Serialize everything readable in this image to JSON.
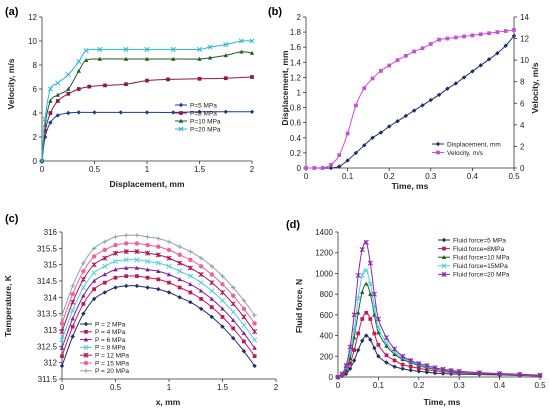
{
  "chart_data": [
    {
      "panel": "(a)",
      "type": "line",
      "xlabel": "Displacement, mm",
      "ylabel": "Velocity, m/s",
      "xlim": [
        0,
        2
      ],
      "ylim": [
        0,
        12
      ],
      "xticks": [
        "0",
        "0.5",
        "1",
        "1.5",
        "2"
      ],
      "yticks": [
        "0",
        "2",
        "4",
        "6",
        "8",
        "10",
        "12"
      ],
      "grid": false,
      "legend_position": "bottom-right",
      "series": [
        {
          "name": "P=5 MPa",
          "color": "#1f3a93",
          "marker": "diamond",
          "x": [
            0,
            0.03,
            0.08,
            0.15,
            0.25,
            0.35,
            0.5,
            0.75,
            1.0,
            1.25,
            1.5,
            1.75,
            2.0
          ],
          "y": [
            0,
            2.0,
            3.2,
            3.8,
            4.0,
            4.05,
            4.05,
            4.05,
            4.05,
            4.05,
            4.1,
            4.1,
            4.1
          ]
        },
        {
          "name": "P=8 MPa",
          "color": "#8b1a4a",
          "marker": "square",
          "x": [
            0,
            0.03,
            0.08,
            0.15,
            0.25,
            0.35,
            0.45,
            0.6,
            0.8,
            1.0,
            1.2,
            1.5,
            1.75,
            2.0
          ],
          "y": [
            0,
            2.5,
            4.0,
            5.0,
            5.6,
            6.0,
            6.2,
            6.3,
            6.4,
            6.7,
            6.8,
            6.85,
            6.9,
            7.0
          ]
        },
        {
          "name": "P=10 MPa",
          "color": "#1b5e20",
          "marker": "triangle",
          "x": [
            0,
            0.03,
            0.08,
            0.15,
            0.25,
            0.35,
            0.42,
            0.55,
            0.8,
            1.0,
            1.25,
            1.5,
            1.6,
            1.75,
            1.9,
            2.0
          ],
          "y": [
            0,
            3.0,
            5.0,
            5.5,
            6.0,
            7.5,
            8.4,
            8.5,
            8.5,
            8.5,
            8.5,
            8.5,
            8.6,
            8.8,
            9.1,
            9.0
          ]
        },
        {
          "name": "P=20 MPa",
          "color": "#29b6d6",
          "marker": "x",
          "x": [
            0,
            0.03,
            0.08,
            0.15,
            0.25,
            0.35,
            0.42,
            0.55,
            0.8,
            1.0,
            1.25,
            1.5,
            1.6,
            1.75,
            1.9,
            2.0
          ],
          "y": [
            0,
            3.5,
            6.0,
            6.5,
            7.2,
            8.3,
            9.2,
            9.3,
            9.3,
            9.3,
            9.3,
            9.3,
            9.5,
            9.7,
            10.0,
            10.0
          ]
        }
      ]
    },
    {
      "panel": "(b)",
      "type": "line",
      "xlabel": "Time, ms",
      "ylabel": "Displacement, mm",
      "y2label": "Velocity, m/s",
      "xlim": [
        0,
        0.5
      ],
      "ylim": [
        0,
        2
      ],
      "y2lim": [
        0,
        14
      ],
      "xticks": [
        "0",
        "0.1",
        "0.2",
        "0.3",
        "0.4",
        "0.5"
      ],
      "yticks": [
        "0",
        "0.2",
        "0.4",
        "0.6",
        "0.8",
        "1",
        "1.2",
        "1.4",
        "1.6",
        "1.8",
        "2"
      ],
      "y2ticks": [
        "0",
        "2",
        "4",
        "6",
        "8",
        "10",
        "12",
        "14"
      ],
      "grid": false,
      "legend_position": "bottom-right",
      "series": [
        {
          "name": "Displacement, mm",
          "color": "#1f2f6b",
          "marker": "diamond",
          "axis": "left",
          "x": [
            0,
            0.02,
            0.04,
            0.06,
            0.08,
            0.1,
            0.12,
            0.14,
            0.16,
            0.18,
            0.2,
            0.22,
            0.24,
            0.26,
            0.28,
            0.3,
            0.32,
            0.34,
            0.36,
            0.38,
            0.4,
            0.42,
            0.44,
            0.46,
            0.48,
            0.5
          ],
          "y": [
            0,
            0,
            0,
            0,
            0.02,
            0.1,
            0.2,
            0.3,
            0.4,
            0.47,
            0.55,
            0.62,
            0.69,
            0.76,
            0.83,
            0.9,
            0.97,
            1.05,
            1.12,
            1.2,
            1.28,
            1.36,
            1.44,
            1.52,
            1.62,
            1.75
          ]
        },
        {
          "name": "Velocity, m/s",
          "color": "#c74fd6",
          "marker": "square",
          "axis": "right",
          "x": [
            0,
            0.02,
            0.04,
            0.06,
            0.08,
            0.1,
            0.12,
            0.14,
            0.16,
            0.18,
            0.2,
            0.22,
            0.24,
            0.26,
            0.28,
            0.3,
            0.32,
            0.34,
            0.36,
            0.38,
            0.4,
            0.42,
            0.44,
            0.46,
            0.48,
            0.5
          ],
          "y": [
            0,
            0,
            0,
            0.3,
            1.2,
            3.2,
            5.8,
            7.4,
            8.3,
            9.0,
            9.5,
            10.0,
            10.4,
            10.8,
            11.1,
            11.5,
            11.9,
            12.0,
            12.1,
            12.2,
            12.3,
            12.4,
            12.5,
            12.6,
            12.7,
            12.8
          ]
        }
      ]
    },
    {
      "panel": "(c)",
      "type": "line",
      "xlabel": "x, mm",
      "ylabel": "Temperature, K",
      "xlim": [
        0,
        2
      ],
      "ylim": [
        311.5,
        316
      ],
      "xticks": [
        "0",
        "0.5",
        "1",
        "1.5",
        "2"
      ],
      "yticks": [
        "311.5",
        "312",
        "312.5",
        "313",
        "313.5",
        "314",
        "314.5",
        "315",
        "315.5",
        "316"
      ],
      "grid": false,
      "legend_position": "bottom-left",
      "x": [
        0,
        0.1,
        0.2,
        0.3,
        0.4,
        0.5,
        0.6,
        0.7,
        0.8,
        0.9,
        1.0,
        1.1,
        1.2,
        1.3,
        1.4,
        1.5,
        1.6,
        1.7,
        1.8
      ],
      "series": [
        {
          "name": "P = 2 MPa",
          "color": "#1f2f6b",
          "marker": "diamond",
          "y": [
            311.9,
            312.8,
            313.5,
            313.95,
            314.15,
            314.3,
            314.35,
            314.35,
            314.3,
            314.25,
            314.15,
            314.0,
            313.85,
            313.65,
            313.4,
            313.1,
            312.75,
            312.35,
            311.9
          ]
        },
        {
          "name": "P = 4 MPa",
          "color": "#c2185b",
          "marker": "square",
          "y": [
            312.2,
            313.1,
            313.8,
            314.25,
            314.45,
            314.6,
            314.65,
            314.65,
            314.6,
            314.55,
            314.45,
            314.3,
            314.15,
            313.95,
            313.7,
            313.4,
            313.05,
            312.65,
            312.2
          ]
        },
        {
          "name": "P = 6 MPa",
          "color": "#7b1fa2",
          "marker": "triangle",
          "y": [
            312.45,
            313.35,
            314.05,
            314.5,
            314.7,
            314.85,
            314.9,
            314.9,
            314.85,
            314.8,
            314.7,
            314.55,
            314.4,
            314.2,
            313.95,
            313.65,
            313.3,
            312.9,
            312.45
          ]
        },
        {
          "name": "P = 8 MPa",
          "color": "#4dd0e1",
          "marker": "x",
          "y": [
            312.7,
            313.6,
            314.3,
            314.75,
            314.95,
            315.1,
            315.15,
            315.15,
            315.1,
            315.05,
            314.95,
            314.8,
            314.65,
            314.45,
            314.2,
            313.9,
            313.55,
            313.15,
            312.7
          ]
        },
        {
          "name": "P = 12 MPa",
          "color": "#ad1457",
          "marker": "star",
          "y": [
            312.95,
            313.85,
            314.55,
            315.0,
            315.2,
            315.35,
            315.4,
            315.4,
            315.35,
            315.3,
            315.2,
            315.05,
            314.9,
            314.7,
            314.45,
            314.15,
            313.8,
            313.4,
            312.95
          ]
        },
        {
          "name": "P = 15 MPa",
          "color": "#f06292",
          "marker": "circle",
          "y": [
            313.2,
            314.1,
            314.8,
            315.25,
            315.45,
            315.6,
            315.65,
            315.65,
            315.6,
            315.55,
            315.45,
            315.3,
            315.15,
            314.95,
            314.7,
            314.4,
            314.05,
            313.65,
            313.2
          ]
        },
        {
          "name": "P = 20 MPa",
          "color": "#90a4ae",
          "marker": "plus",
          "y": [
            313.45,
            314.35,
            315.05,
            315.5,
            315.7,
            315.85,
            315.9,
            315.9,
            315.85,
            315.8,
            315.7,
            315.55,
            315.4,
            315.2,
            314.95,
            314.65,
            314.3,
            313.9,
            313.45
          ]
        }
      ]
    },
    {
      "panel": "(d)",
      "type": "line",
      "xlabel": "Time, ms",
      "ylabel": "Fluid force, N",
      "xlim": [
        0,
        0.5
      ],
      "ylim": [
        0,
        1400
      ],
      "xticks": [
        "0",
        "0.1",
        "0.2",
        "0.3",
        "0.4",
        "0.5"
      ],
      "yticks": [
        "0",
        "200",
        "400",
        "600",
        "800",
        "1000",
        "1200",
        "1400"
      ],
      "grid": false,
      "legend_position": "top-right",
      "x": [
        0,
        0.01,
        0.02,
        0.03,
        0.04,
        0.05,
        0.06,
        0.07,
        0.08,
        0.09,
        0.1,
        0.12,
        0.14,
        0.16,
        0.18,
        0.2,
        0.22,
        0.24,
        0.26,
        0.28,
        0.3,
        0.35,
        0.4,
        0.45,
        0.5
      ],
      "series": [
        {
          "name": "Fluid force=5 MPa",
          "color": "#1f2f6b",
          "marker": "diamond",
          "y": [
            0,
            10,
            30,
            80,
            160,
            260,
            350,
            400,
            360,
            280,
            200,
            140,
            100,
            80,
            65,
            55,
            45,
            38,
            33,
            30,
            28,
            24,
            20,
            15,
            10
          ]
        },
        {
          "name": "Fluid force=8MPa",
          "color": "#c2185b",
          "marker": "square",
          "y": [
            0,
            15,
            50,
            130,
            260,
            420,
            560,
            620,
            560,
            420,
            310,
            210,
            160,
            120,
            100,
            85,
            70,
            60,
            52,
            45,
            40,
            32,
            26,
            18,
            12
          ]
        },
        {
          "name": "Fluid force=10 MPa",
          "color": "#1b5e20",
          "marker": "triangle",
          "y": [
            0,
            20,
            70,
            180,
            380,
            620,
            820,
            900,
            800,
            600,
            430,
            300,
            220,
            170,
            140,
            110,
            90,
            75,
            65,
            55,
            48,
            38,
            30,
            22,
            15
          ]
        },
        {
          "name": "Fluid force=15MPa",
          "color": "#4dd0e1",
          "marker": "x",
          "y": [
            0,
            25,
            90,
            230,
            460,
            760,
            980,
            1030,
            900,
            680,
            480,
            330,
            240,
            185,
            150,
            120,
            100,
            82,
            70,
            60,
            52,
            40,
            32,
            24,
            16
          ]
        },
        {
          "name": "Fluid force=20 MPa",
          "color": "#8e24aa",
          "marker": "star",
          "y": [
            0,
            30,
            110,
            290,
            600,
            980,
            1230,
            1300,
            1100,
            800,
            560,
            380,
            270,
            200,
            160,
            130,
            110,
            90,
            75,
            64,
            55,
            42,
            34,
            26,
            18
          ]
        }
      ]
    }
  ]
}
